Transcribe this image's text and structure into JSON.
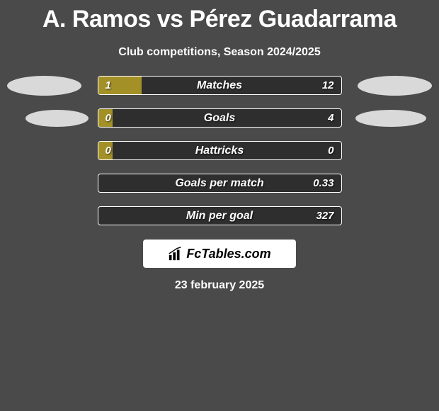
{
  "title": "A. Ramos vs Pérez Guadarrama",
  "subtitle": "Club competitions, Season 2024/2025",
  "background_color": "#4a4a4a",
  "bar_bg_color": "#2e2e2e",
  "bar_fill_color": "#a39128",
  "bar_border_color": "#ffffff",
  "text_color": "#ffffff",
  "rows": [
    {
      "label": "Matches",
      "left": "1",
      "right": "12",
      "fill_pct": 18,
      "show_left_avatar": true,
      "show_right_avatar": true,
      "avatar_size": "big"
    },
    {
      "label": "Goals",
      "left": "0",
      "right": "4",
      "fill_pct": 6,
      "show_left_avatar": true,
      "show_right_avatar": true,
      "avatar_size": "small"
    },
    {
      "label": "Hattricks",
      "left": "0",
      "right": "0",
      "fill_pct": 6,
      "show_left_avatar": false,
      "show_right_avatar": false
    },
    {
      "label": "Goals per match",
      "left": "",
      "right": "0.33",
      "fill_pct": 0,
      "show_left_avatar": false,
      "show_right_avatar": false
    },
    {
      "label": "Min per goal",
      "left": "",
      "right": "327",
      "fill_pct": 0,
      "show_left_avatar": false,
      "show_right_avatar": false
    }
  ],
  "logo_text": "FcTables.com",
  "date": "23 february 2025"
}
